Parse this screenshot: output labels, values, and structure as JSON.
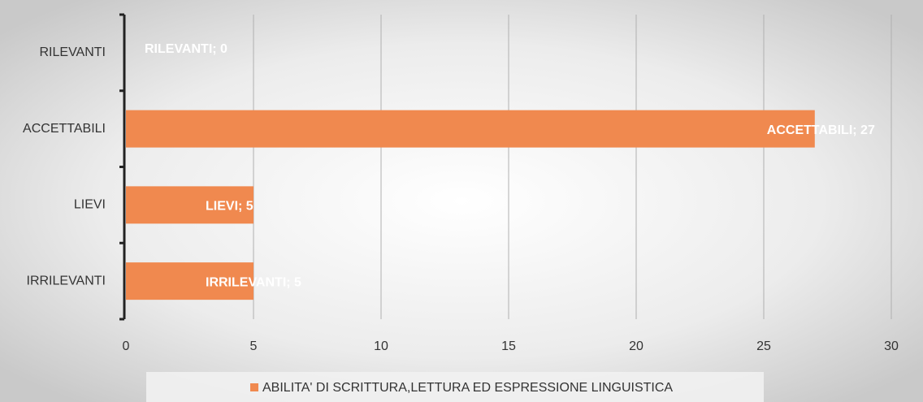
{
  "chart_data": {
    "type": "bar",
    "orientation": "horizontal",
    "categories": [
      "RILEVANTI",
      "ACCETTABILI",
      "LIEVI",
      "IRRILEVANTI"
    ],
    "series": [
      {
        "name": "ABILITA' DI SCRITTURA,LETTURA ED ESPRESSIONE LINGUISTICA",
        "color": "#f0894f",
        "values": [
          0,
          27,
          5,
          5
        ],
        "value_labels": [
          "RILEVANTI; 0",
          "ACCETTABILI; 27",
          "LIEVI; 5",
          "IRRILEVANTI; 5"
        ]
      }
    ],
    "xlim": [
      0,
      30
    ],
    "xticks": [
      0,
      5,
      10,
      15,
      20,
      25,
      30
    ],
    "grid": true,
    "legend": "bottom"
  }
}
